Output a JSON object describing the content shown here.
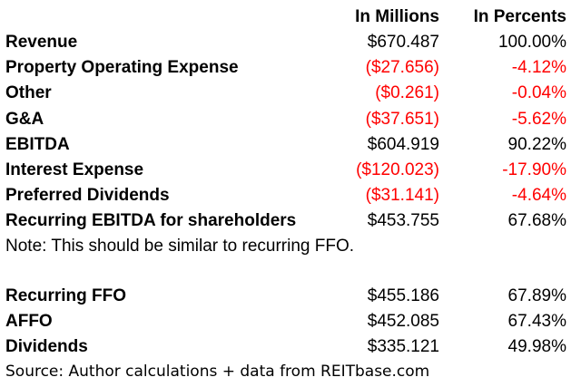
{
  "header": {
    "millions": "In Millions",
    "percents": "In Percents"
  },
  "rows1": [
    {
      "label": "Revenue",
      "millions": "$670.487",
      "percent": "100.00%",
      "negative": false
    },
    {
      "label": "Property Operating Expense",
      "millions": "($27.656)",
      "percent": "-4.12%",
      "negative": true
    },
    {
      "label": "Other",
      "millions": "($0.261)",
      "percent": "-0.04%",
      "negative": true
    },
    {
      "label": "G&A",
      "millions": "($37.651)",
      "percent": "-5.62%",
      "negative": true
    },
    {
      "label": "EBITDA",
      "millions": "$604.919",
      "percent": "90.22%",
      "negative": false
    },
    {
      "label": "Interest Expense",
      "millions": "($120.023)",
      "percent": "-17.90%",
      "negative": true
    },
    {
      "label": "Preferred Dividends",
      "millions": "($31.141)",
      "percent": "-4.64%",
      "negative": true
    },
    {
      "label": "Recurring EBITDA for shareholders",
      "millions": "$453.755",
      "percent": "67.68%",
      "negative": false
    }
  ],
  "note": "Note: This should be similar to recurring FFO.",
  "rows2": [
    {
      "label": "Recurring FFO",
      "millions": "$455.186",
      "percent": "67.89%",
      "negative": false
    },
    {
      "label": "AFFO",
      "millions": "$452.085",
      "percent": "67.43%",
      "negative": false
    },
    {
      "label": "Dividends",
      "millions": "$335.121",
      "percent": "49.98%",
      "negative": false
    }
  ],
  "source": "Source: Author calculations + data from REITbase.com",
  "colors": {
    "negative": "#ff0000",
    "text": "#000000",
    "background": "#ffffff"
  }
}
